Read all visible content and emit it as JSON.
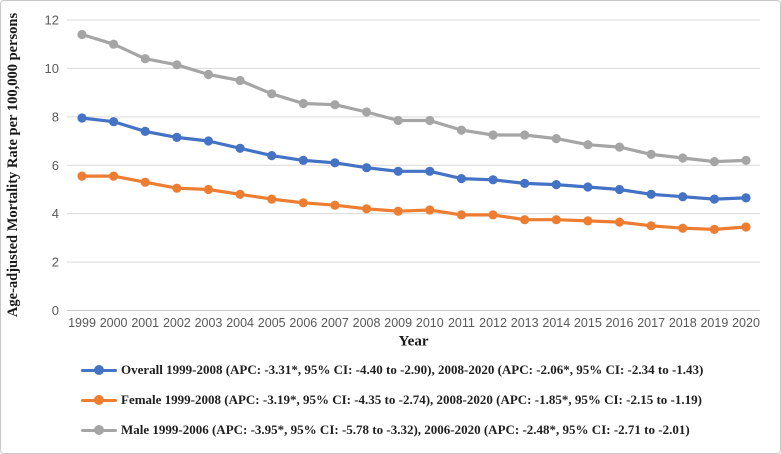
{
  "chart_data": {
    "type": "line",
    "title": "",
    "xlabel": "Year",
    "ylabel": "Age-adjusted Mortality Rate per 100,000 persons",
    "x": [
      1999,
      2000,
      2001,
      2002,
      2003,
      2004,
      2005,
      2006,
      2007,
      2008,
      2009,
      2010,
      2011,
      2012,
      2013,
      2014,
      2015,
      2016,
      2017,
      2018,
      2019,
      2020
    ],
    "ylim": [
      0,
      12
    ],
    "yticks": [
      0,
      2,
      4,
      6,
      8,
      10,
      12
    ],
    "grid": true,
    "legend_position": "bottom",
    "series": [
      {
        "name": "Overall",
        "color": "#4472C4",
        "label": "Overall 1999-2008 (APC: -3.31*, 95% CI: -4.40 to -2.90), 2008-2020 (APC: -2.06*, 95% CI: -2.34 to -1.43)",
        "values": [
          7.95,
          7.8,
          7.4,
          7.15,
          7.0,
          6.7,
          6.4,
          6.2,
          6.1,
          5.9,
          5.75,
          5.75,
          5.45,
          5.4,
          5.25,
          5.2,
          5.1,
          5.0,
          4.8,
          4.7,
          4.6,
          4.65
        ]
      },
      {
        "name": "Female",
        "color": "#ED7D31",
        "label": "Female 1999-2008 (APC: -3.19*, 95% CI: -4.35 to -2.74), 2008-2020 (APC: -1.85*, 95% CI: -2.15 to -1.19)",
        "values": [
          5.55,
          5.55,
          5.3,
          5.05,
          5.0,
          4.8,
          4.6,
          4.45,
          4.35,
          4.2,
          4.1,
          4.15,
          3.95,
          3.95,
          3.75,
          3.75,
          3.7,
          3.65,
          3.5,
          3.4,
          3.35,
          3.45
        ]
      },
      {
        "name": "Male",
        "color": "#A5A5A5",
        "label": "Male 1999-2006 (APC: -3.95*, 95% CI: -5.78 to -3.32), 2006-2020 (APC: -2.48*, 95% CI: -2.71 to -2.01)",
        "values": [
          11.4,
          11.0,
          10.4,
          10.15,
          9.75,
          9.5,
          8.95,
          8.55,
          8.5,
          8.2,
          7.85,
          7.85,
          7.45,
          7.25,
          7.25,
          7.1,
          6.85,
          6.75,
          6.45,
          6.3,
          6.15,
          6.2
        ]
      }
    ],
    "gridline_color": "#D9D9D9",
    "axis_line_color": "#C6C6C6",
    "tick_label_color": "#595959",
    "title_text_color": "#1a1a1a"
  }
}
